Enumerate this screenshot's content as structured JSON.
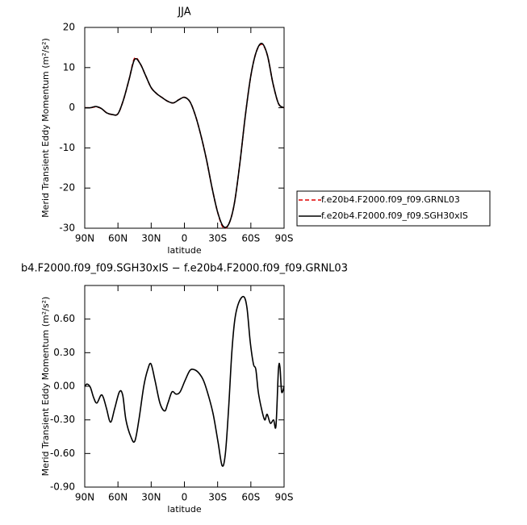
{
  "chart_data": [
    {
      "type": "line",
      "title": "JJA",
      "x_label": "latitude",
      "y_label": "Merid Transient Eddy Momentum (m²/s²)",
      "x": [
        90,
        85,
        80,
        75,
        70,
        65,
        60,
        55,
        50,
        45,
        40,
        35,
        30,
        25,
        20,
        15,
        10,
        5,
        0,
        -5,
        -10,
        -15,
        -20,
        -25,
        -30,
        -35,
        -40,
        -45,
        -50,
        -55,
        -60,
        -65,
        -70,
        -75,
        -80,
        -85,
        -90
      ],
      "series": [
        {
          "name": "f.e20b4.F2000.f09_f09.GRNL03",
          "color": "#e00000",
          "line_style": "dashed",
          "values": [
            0,
            0,
            0.2,
            -0.2,
            -1.3,
            -1.7,
            -1.5,
            2,
            7,
            12.3,
            11,
            8,
            5,
            3.5,
            2.5,
            1.6,
            1.2,
            2,
            2.6,
            1.5,
            -2,
            -7,
            -13,
            -20,
            -26,
            -29.8,
            -29,
            -24,
            -14,
            -2,
            8,
            14,
            15.8,
            13,
            6,
            1,
            0
          ]
        },
        {
          "name": "f.e20b4.F2000.f09_f09.SGH30xIS",
          "color": "#000000",
          "line_style": "solid",
          "values": [
            0,
            0,
            0.3,
            -0.2,
            -1.3,
            -1.7,
            -1.5,
            2,
            7,
            12,
            11,
            8,
            5,
            3.5,
            2.5,
            1.6,
            1.2,
            2,
            2.6,
            1.5,
            -2,
            -7,
            -13,
            -20,
            -26,
            -29.5,
            -29,
            -24,
            -14,
            -2,
            8,
            14,
            16,
            13,
            6,
            1,
            0
          ]
        }
      ],
      "xlim": [
        90,
        -90
      ],
      "xticks": [
        {
          "value": 90,
          "label": "90N"
        },
        {
          "value": 60,
          "label": "60N"
        },
        {
          "value": 30,
          "label": "30N"
        },
        0,
        {
          "value": -30,
          "label": "30S"
        },
        {
          "value": -60,
          "label": "60S"
        },
        {
          "value": -90,
          "label": "90S"
        }
      ],
      "ylim": [
        -30,
        20
      ],
      "yticks": [
        20,
        10,
        0,
        -10,
        -20,
        -30
      ],
      "legend": "right"
    },
    {
      "type": "line",
      "title": "b4.F2000.f09_f09.SGH30xIS − f.e20b4.F2000.f09_f09.GRNL03",
      "x_label": "latitude",
      "y_label": "Merid Transient Eddy Momentum (m²/s²)",
      "x": [
        90,
        87.8,
        84.9,
        82,
        79.1,
        75.4,
        73.2,
        70.3,
        66.7,
        63,
        58.7,
        55.7,
        52.8,
        48.4,
        44.8,
        41.1,
        36.7,
        33.1,
        30.2,
        26.5,
        22.1,
        17.8,
        14.9,
        11.2,
        7.5,
        3.9,
        -0.5,
        -4.9,
        -8.5,
        -12.9,
        -17.3,
        -21.6,
        -26,
        -30.4,
        -34.1,
        -37,
        -39.9,
        -42.8,
        -45.6,
        -49.2,
        -53.6,
        -56.5,
        -59.4,
        -62.3,
        -64.5,
        -66.7,
        -69.6,
        -72.5,
        -74.7,
        -77.6,
        -80.5,
        -82.7,
        -84.9,
        -86.3,
        -87.8,
        -90
      ],
      "series": [
        {
          "name": null,
          "color": "#000000",
          "line_style": "solid",
          "values": [
            0,
            0.02,
            -0.01,
            -0.1,
            -0.15,
            -0.08,
            -0.1,
            -0.2,
            -0.32,
            -0.2,
            -0.05,
            -0.08,
            -0.3,
            -0.45,
            -0.49,
            -0.3,
            0,
            0.15,
            0.2,
            0.05,
            -0.15,
            -0.22,
            -0.15,
            -0.05,
            -0.07,
            -0.05,
            0.05,
            0.14,
            0.15,
            0.12,
            0.05,
            -0.08,
            -0.25,
            -0.5,
            -0.71,
            -0.6,
            -0.2,
            0.3,
            0.6,
            0.75,
            0.8,
            0.7,
            0.4,
            0.2,
            0.15,
            -0.05,
            -0.2,
            -0.3,
            -0.25,
            -0.33,
            -0.3,
            -0.35,
            0.15,
            0.17,
            -0.05,
            0
          ]
        }
      ],
      "xlim": [
        90,
        -90
      ],
      "xticks": [
        {
          "value": 90,
          "label": "90N"
        },
        {
          "value": 60,
          "label": "60N"
        },
        {
          "value": 30,
          "label": "30N"
        },
        0,
        {
          "value": -30,
          "label": "30S"
        },
        {
          "value": -60,
          "label": "60S"
        },
        {
          "value": -90,
          "label": "90S"
        }
      ],
      "ylim": [
        -0.9,
        0.9
      ],
      "yticks": [
        {
          "value": 0.6,
          "label": "0.60"
        },
        {
          "value": 0.3,
          "label": "0.30"
        },
        {
          "value": 0,
          "label": "0.00"
        },
        {
          "value": -0.3,
          "label": "-0.30"
        },
        {
          "value": -0.6,
          "label": "-0.60"
        },
        {
          "value": -0.9,
          "label": "-0.90"
        }
      ]
    }
  ]
}
